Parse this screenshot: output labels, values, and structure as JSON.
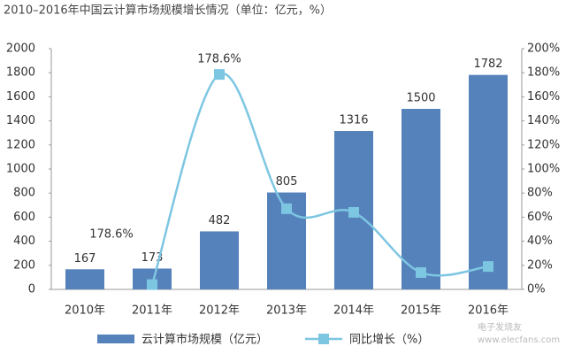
{
  "chart_data": {
    "type": "bar_line",
    "title": "2010–2016年中国云计算市场规模增长情况（单位：亿元，%）",
    "categories": [
      "2010年",
      "2011年",
      "2012年",
      "2013年",
      "2014年",
      "2015年",
      "2016年"
    ],
    "series": [
      {
        "name": "云计算市场规模（亿元）",
        "type": "bar",
        "color": "#5582bb",
        "values": [
          167,
          173,
          482,
          805,
          1316,
          1500,
          1782
        ]
      },
      {
        "name": "同比增长（%）",
        "type": "line",
        "axis": "y2",
        "color": "#7dc6e2",
        "values": [
          null,
          4,
          178.6,
          67,
          64,
          14,
          19
        ],
        "value_labels": [
          null,
          null,
          "178.6%",
          null,
          null,
          null,
          null
        ]
      }
    ],
    "annotations": [
      "178.6%"
    ],
    "ylim": [
      0,
      2000
    ],
    "yticks": [
      0,
      200,
      400,
      600,
      800,
      1000,
      1200,
      1400,
      1600,
      1800,
      2000
    ],
    "y2lim": [
      0,
      200
    ],
    "y2ticks": [
      {
        "value": 0,
        "label": "0%"
      },
      {
        "value": 20,
        "label": "20%"
      },
      {
        "value": 40,
        "label": "40%"
      },
      {
        "value": 60,
        "label": "60%"
      },
      {
        "value": 80,
        "label": "80%"
      },
      {
        "value": 100,
        "label": "100%"
      },
      {
        "value": 120,
        "label": "120%"
      },
      {
        "value": 140,
        "label": "140%"
      },
      {
        "value": 160,
        "label": "160%"
      },
      {
        "value": 180,
        "label": "180%"
      },
      {
        "value": 200,
        "label": "200%"
      }
    ],
    "watermark": [
      "电子发烧友",
      "www.elecfans.com"
    ]
  }
}
